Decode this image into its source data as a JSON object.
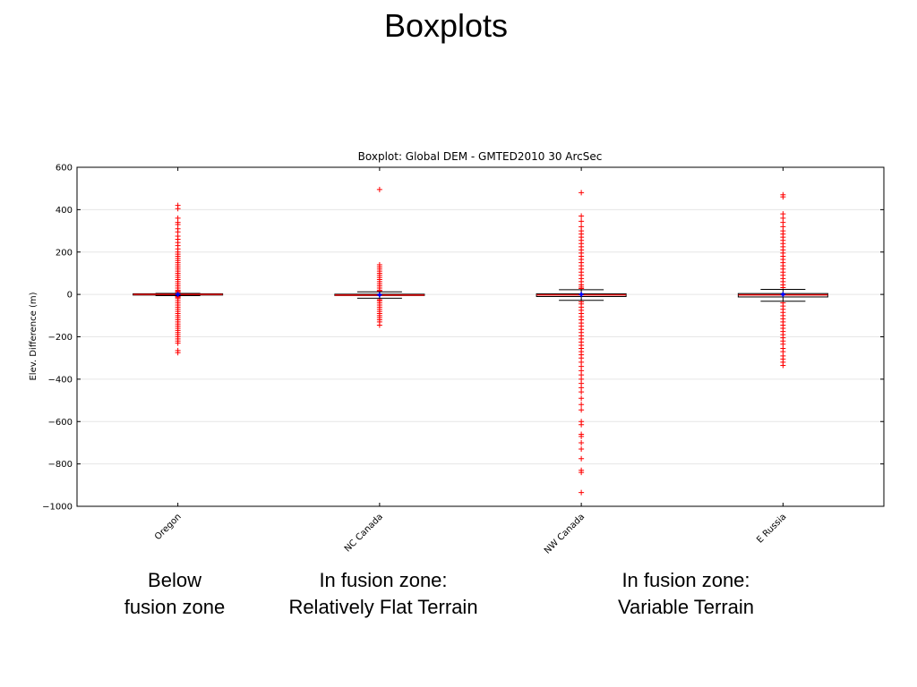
{
  "slide": {
    "title": "Boxplots",
    "captions": [
      {
        "lines": [
          "Below",
          "fusion zone"
        ]
      },
      {
        "lines": [
          "In fusion zone:",
          "Relatively Flat Terrain"
        ]
      },
      {
        "lines": [
          "In fusion zone:",
          "Variable Terrain"
        ]
      }
    ]
  },
  "chart_data": {
    "type": "box",
    "title": "Boxplot: Global DEM - GMTED2010 30 ArcSec",
    "xlabel": "",
    "ylabel": "Elev. Difference (m)",
    "ylim": [
      -1000,
      600
    ],
    "yticks": [
      600,
      400,
      200,
      0,
      -200,
      -400,
      -600,
      -800,
      -1000
    ],
    "ytick_labels": [
      "600",
      "400",
      "200",
      "0",
      "−200",
      "−400",
      "−600",
      "−800",
      "−1000"
    ],
    "grid": "horizontal",
    "colors": {
      "box": "#000000",
      "median": "#e00000",
      "outlier": "#ff0000",
      "mean": "#0000ff"
    },
    "categories": [
      "Oregon",
      "NC Canada",
      "NW Canada",
      "E Russia"
    ],
    "boxes": [
      {
        "name": "Oregon",
        "q1": -3,
        "median": 0,
        "q3": 3,
        "whisker_low": -6,
        "whisker_high": 5,
        "mean": 0,
        "outliers": [
          420,
          405,
          360,
          340,
          330,
          310,
          295,
          275,
          260,
          245,
          230,
          215,
          200,
          190,
          180,
          170,
          160,
          150,
          140,
          130,
          120,
          110,
          100,
          90,
          80,
          70,
          60,
          50,
          40,
          30,
          20,
          15,
          10,
          -10,
          -15,
          -20,
          -30,
          -40,
          -50,
          -60,
          -70,
          -80,
          -90,
          -100,
          -110,
          -120,
          -130,
          -140,
          -150,
          -160,
          -170,
          -180,
          -190,
          -200,
          -210,
          -220,
          -230,
          -265,
          -275
        ]
      },
      {
        "name": "NC Canada",
        "q1": -5,
        "median": -3,
        "q3": 1,
        "whisker_low": -18,
        "whisker_high": 12,
        "mean": -2,
        "outliers": [
          495,
          140,
          130,
          120,
          110,
          100,
          90,
          80,
          70,
          60,
          50,
          40,
          30,
          20,
          15,
          -25,
          -30,
          -40,
          -50,
          -60,
          -70,
          -80,
          -90,
          -100,
          -110,
          -120,
          -130,
          -145
        ]
      },
      {
        "name": "NW Canada",
        "q1": -10,
        "median": -2,
        "q3": 3,
        "whisker_low": -28,
        "whisker_high": 22,
        "mean": 0,
        "outliers": [
          480,
          370,
          345,
          320,
          300,
          285,
          270,
          255,
          240,
          225,
          210,
          195,
          180,
          165,
          150,
          135,
          120,
          105,
          90,
          75,
          60,
          45,
          35,
          28,
          -35,
          -45,
          -60,
          -75,
          -90,
          -105,
          -120,
          -135,
          -150,
          -165,
          -180,
          -195,
          -210,
          -225,
          -240,
          -255,
          -270,
          -285,
          -300,
          -320,
          -340,
          -360,
          -380,
          -400,
          -420,
          -440,
          -460,
          -490,
          -520,
          -545,
          -600,
          -615,
          -660,
          -670,
          -700,
          -730,
          -775,
          -830,
          -840,
          -935
        ]
      },
      {
        "name": "E Russia",
        "q1": -12,
        "median": -2,
        "q3": 4,
        "whisker_low": -32,
        "whisker_high": 24,
        "mean": 0,
        "outliers": [
          470,
          460,
          380,
          360,
          340,
          320,
          300,
          285,
          270,
          255,
          240,
          225,
          210,
          195,
          180,
          165,
          150,
          135,
          120,
          105,
          90,
          75,
          60,
          45,
          32,
          -40,
          -55,
          -70,
          -85,
          -100,
          -115,
          -130,
          -145,
          -160,
          -175,
          -190,
          -205,
          -220,
          -235,
          -255,
          -270,
          -290,
          -305,
          -320,
          -335
        ]
      }
    ]
  }
}
